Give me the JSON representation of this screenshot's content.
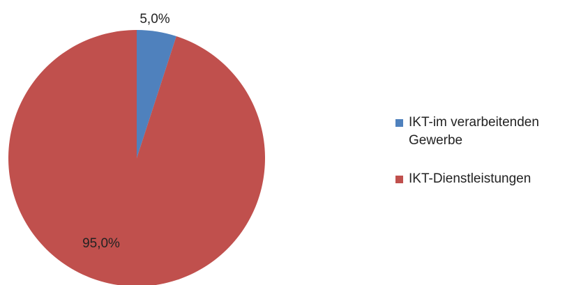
{
  "chart_data": {
    "type": "pie",
    "categories": [
      "IKT-im verarbeitenden Gewerbe",
      "IKT-Dienstleistungen"
    ],
    "values": [
      5,
      95
    ],
    "value_labels": [
      "5,0%",
      "95,0%"
    ],
    "colors": [
      "#4f81bd",
      "#c0504d"
    ],
    "legend": "right"
  }
}
